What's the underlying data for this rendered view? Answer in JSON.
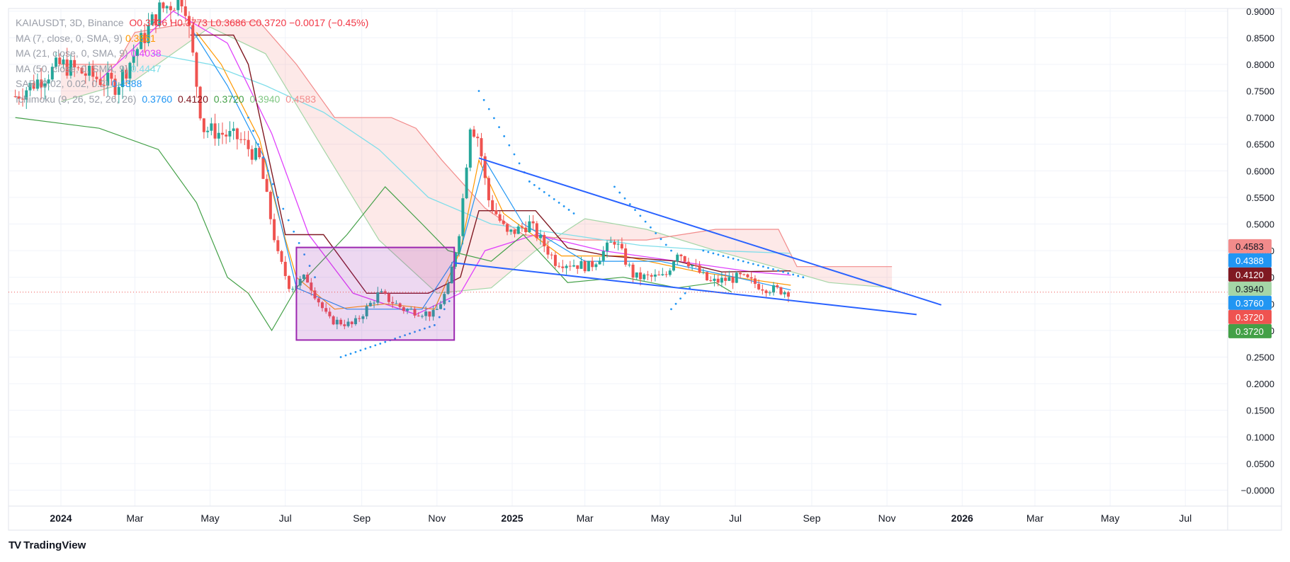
{
  "legend": {
    "symbol": "KAIAUSDT, 3D, Binance",
    "ohlc": "O0.3736  H0.3773  L0.3686  C0.3720  −0.0017 (−0.45%)",
    "ma1_label": "MA (7, close, 0, SMA, 9)",
    "ma1_value": "0.3851",
    "ma2_label": "MA (21, close, 0, SMA, 9)",
    "ma2_value": "0.4038",
    "ma3_label": "MA (50, close, 0, SMA, 9)",
    "ma3_value": "0.4447",
    "sar_label": "SAR (0.02, 0.02, 0.2)",
    "sar_value": "0.4388",
    "ichi_label": "Ichimoku (9, 26, 52, 26, 26)",
    "ichi_values": [
      "0.3760",
      "0.4120",
      "0.3720",
      "0.3940",
      "0.4583"
    ]
  },
  "brand": "TradingView",
  "colors": {
    "up": "#26a69a",
    "down": "#ef5350",
    "conversion": "#2196f3",
    "base": "#801922",
    "lagging": "#43a047",
    "leadA": "#a5d6a7",
    "leadB": "#f28b8b",
    "ma7": "#ff9800",
    "ma21": "#e040fb",
    "ma50": "#80deea",
    "sar": "#2196f3",
    "trend": "#2962ff",
    "box": "#9c27b0"
  },
  "chart_data": {
    "type": "candlestick",
    "y_axis": {
      "ylim": [
        -0.03,
        0.905
      ],
      "ticks": [
        "0.9000",
        "0.8500",
        "0.8000",
        "0.7500",
        "0.7000",
        "0.6500",
        "0.6000",
        "0.5500",
        "0.5000",
        "0.4500",
        "0.4000",
        "0.3500",
        "0.3000",
        "0.2500",
        "0.2000",
        "0.1500",
        "0.1000",
        "0.0500",
        "−0.0000"
      ]
    },
    "x_axis": {
      "ticks": [
        "2024",
        "Mar",
        "May",
        "Jul",
        "Sep",
        "Nov",
        "2025",
        "Mar",
        "May",
        "Jul",
        "Sep",
        "Nov",
        "2026",
        "Mar",
        "May",
        "Jul"
      ]
    },
    "price_labels": [
      {
        "text": "0.4583",
        "value": 0.4583,
        "color": "#f28b8b",
        "text_color": "#131722"
      },
      {
        "text": "0.4388",
        "value": 0.4388,
        "color": "#2196f3",
        "text_color": "#ffffff"
      },
      {
        "text": "0.4120",
        "value": 0.412,
        "color": "#801922",
        "text_color": "#ffffff"
      },
      {
        "text": "0.3940",
        "value": 0.394,
        "color": "#a5d6a7",
        "text_color": "#131722"
      },
      {
        "text": "0.3760",
        "value": 0.376,
        "color": "#2196f3",
        "text_color": "#ffffff"
      },
      {
        "text": "0.3720",
        "value": 0.372,
        "color": "#ef5350",
        "text_color": "#ffffff"
      },
      {
        "text": "0.3720",
        "value": 0.372,
        "color": "#43a047",
        "text_color": "#ffffff"
      }
    ],
    "last_close": 0.372,
    "price_path": [
      [
        "2023-11-25",
        0.74
      ],
      [
        "2024-01-01",
        0.8
      ],
      [
        "2024-02-15",
        0.76
      ],
      [
        "2024-03-20",
        0.9
      ],
      [
        "2024-04-10",
        0.93
      ],
      [
        "2024-04-25",
        0.68
      ],
      [
        "2024-05-25",
        0.66
      ],
      [
        "2024-06-10",
        0.62
      ],
      [
        "2024-06-25",
        0.44
      ],
      [
        "2024-07-05",
        0.38
      ],
      [
        "2024-07-18",
        0.4
      ],
      [
        "2024-08-05",
        0.32
      ],
      [
        "2024-08-25",
        0.31
      ],
      [
        "2024-09-15",
        0.37
      ],
      [
        "2024-10-05",
        0.34
      ],
      [
        "2024-10-30",
        0.33
      ],
      [
        "2024-11-10",
        0.38
      ],
      [
        "2024-11-20",
        0.5
      ],
      [
        "2024-11-28",
        0.69
      ],
      [
        "2024-12-05",
        0.66
      ],
      [
        "2024-12-12",
        0.55
      ],
      [
        "2024-12-28",
        0.48
      ],
      [
        "2025-01-15",
        0.5
      ],
      [
        "2025-02-05",
        0.43
      ],
      [
        "2025-03-05",
        0.42
      ],
      [
        "2025-03-25",
        0.47
      ],
      [
        "2025-04-10",
        0.4
      ],
      [
        "2025-05-05",
        0.4
      ],
      [
        "2025-05-15",
        0.45
      ],
      [
        "2025-06-10",
        0.39
      ],
      [
        "2025-07-05",
        0.4
      ],
      [
        "2025-07-25",
        0.38
      ],
      [
        "2025-08-15",
        0.372
      ]
    ],
    "ma7_path": [
      [
        "2024-04-20",
        0.86
      ],
      [
        "2024-05-10",
        0.8
      ],
      [
        "2024-06-10",
        0.66
      ],
      [
        "2024-06-25",
        0.52
      ],
      [
        "2024-07-10",
        0.4
      ],
      [
        "2024-08-10",
        0.34
      ],
      [
        "2024-09-20",
        0.35
      ],
      [
        "2024-10-30",
        0.34
      ],
      [
        "2024-11-20",
        0.45
      ],
      [
        "2024-12-05",
        0.62
      ],
      [
        "2024-12-25",
        0.52
      ],
      [
        "2025-02-10",
        0.44
      ],
      [
        "2025-04-01",
        0.44
      ],
      [
        "2025-06-01",
        0.41
      ],
      [
        "2025-08-15",
        0.385
      ]
    ],
    "ma21_path": [
      [
        "2024-02-01",
        0.77
      ],
      [
        "2024-04-01",
        0.9
      ],
      [
        "2024-05-15",
        0.84
      ],
      [
        "2024-06-20",
        0.67
      ],
      [
        "2024-07-20",
        0.48
      ],
      [
        "2024-08-25",
        0.37
      ],
      [
        "2024-10-15",
        0.33
      ],
      [
        "2024-11-20",
        0.37
      ],
      [
        "2024-12-10",
        0.45
      ],
      [
        "2025-01-20",
        0.48
      ],
      [
        "2025-03-15",
        0.45
      ],
      [
        "2025-05-15",
        0.43
      ],
      [
        "2025-07-15",
        0.41
      ],
      [
        "2025-08-15",
        0.404
      ]
    ],
    "ma50_path": [
      [
        "2024-03-15",
        0.82
      ],
      [
        "2024-05-01",
        0.8
      ],
      [
        "2024-06-15",
        0.76
      ],
      [
        "2024-08-01",
        0.71
      ],
      [
        "2024-09-15",
        0.64
      ],
      [
        "2024-10-25",
        0.55
      ],
      [
        "2024-12-15",
        0.5
      ],
      [
        "2025-02-15",
        0.48
      ],
      [
        "2025-04-15",
        0.46
      ],
      [
        "2025-06-15",
        0.45
      ],
      [
        "2025-08-15",
        0.445
      ]
    ],
    "conversion_path": [
      [
        "2024-04-15",
        0.87
      ],
      [
        "2024-05-15",
        0.76
      ],
      [
        "2024-06-15",
        0.62
      ],
      [
        "2024-07-10",
        0.38
      ],
      [
        "2024-08-20",
        0.34
      ],
      [
        "2024-10-20",
        0.34
      ],
      [
        "2024-11-20",
        0.45
      ],
      [
        "2024-12-10",
        0.62
      ],
      [
        "2025-01-10",
        0.5
      ],
      [
        "2025-03-01",
        0.43
      ],
      [
        "2025-05-01",
        0.43
      ],
      [
        "2025-07-01",
        0.4
      ],
      [
        "2025-08-15",
        0.376
      ]
    ],
    "base_path": [
      [
        "2024-04-15",
        0.855
      ],
      [
        "2024-05-20",
        0.855
      ],
      [
        "2024-06-01",
        0.8
      ],
      [
        "2024-07-01",
        0.48
      ],
      [
        "2024-08-01",
        0.48
      ],
      [
        "2024-09-05",
        0.37
      ],
      [
        "2024-10-25",
        0.37
      ],
      [
        "2024-11-20",
        0.4
      ],
      [
        "2024-12-05",
        0.525
      ],
      [
        "2025-01-20",
        0.525
      ],
      [
        "2025-02-15",
        0.455
      ],
      [
        "2025-03-20",
        0.44
      ],
      [
        "2025-05-15",
        0.43
      ],
      [
        "2025-06-20",
        0.41
      ],
      [
        "2025-08-15",
        0.412
      ]
    ],
    "lagging_path": [
      [
        "2023-11-25",
        0.7
      ],
      [
        "2024-02-01",
        0.68
      ],
      [
        "2024-03-20",
        0.64
      ],
      [
        "2024-04-20",
        0.54
      ],
      [
        "2024-05-15",
        0.4
      ],
      [
        "2024-06-01",
        0.37
      ],
      [
        "2024-06-20",
        0.3
      ],
      [
        "2024-07-10",
        0.38
      ],
      [
        "2024-08-20",
        0.48
      ],
      [
        "2024-09-20",
        0.57
      ],
      [
        "2024-10-20",
        0.5
      ],
      [
        "2024-11-10",
        0.45
      ],
      [
        "2024-12-15",
        0.43
      ],
      [
        "2025-01-10",
        0.48
      ],
      [
        "2025-02-15",
        0.39
      ],
      [
        "2025-04-01",
        0.4
      ],
      [
        "2025-05-15",
        0.38
      ],
      [
        "2025-06-15",
        0.39
      ],
      [
        "2025-06-28",
        0.372
      ]
    ],
    "lead_a_path": [
      [
        "2024-01-01",
        0.73
      ],
      [
        "2024-03-01",
        0.77
      ],
      [
        "2024-05-01",
        0.87
      ],
      [
        "2024-06-15",
        0.82
      ],
      [
        "2024-08-01",
        0.64
      ],
      [
        "2024-09-15",
        0.47
      ],
      [
        "2024-11-01",
        0.37
      ],
      [
        "2024-12-15",
        0.38
      ],
      [
        "2025-01-20",
        0.45
      ],
      [
        "2025-03-01",
        0.51
      ],
      [
        "2025-04-20",
        0.49
      ],
      [
        "2025-06-15",
        0.45
      ],
      [
        "2025-08-01",
        0.42
      ],
      [
        "2025-09-15",
        0.39
      ],
      [
        "2025-11-05",
        0.38
      ]
    ],
    "lead_b_path": [
      [
        "2024-01-01",
        0.8
      ],
      [
        "2024-02-15",
        0.8
      ],
      [
        "2024-03-01",
        0.86
      ],
      [
        "2024-04-20",
        0.88
      ],
      [
        "2024-06-10",
        0.88
      ],
      [
        "2024-07-10",
        0.8
      ],
      [
        "2024-08-10",
        0.7
      ],
      [
        "2024-09-25",
        0.7
      ],
      [
        "2024-10-15",
        0.68
      ],
      [
        "2024-11-05",
        0.62
      ],
      [
        "2024-12-10",
        0.53
      ],
      [
        "2025-01-10",
        0.48
      ],
      [
        "2025-02-25",
        0.47
      ],
      [
        "2025-04-20",
        0.47
      ],
      [
        "2025-06-15",
        0.49
      ],
      [
        "2025-08-05",
        0.49
      ],
      [
        "2025-08-20",
        0.42
      ],
      [
        "2025-11-05",
        0.42
      ]
    ],
    "sar_segments": [
      [
        [
          "2024-07-25",
          0.4
        ],
        [
          "2024-06-25",
          0.55
        ],
        [
          "2024-06-01",
          0.7
        ]
      ],
      [
        [
          "2024-08-15",
          0.25
        ],
        [
          "2024-10-30",
          0.31
        ],
        [
          "2024-11-15",
          0.37
        ]
      ],
      [
        [
          "2024-12-05",
          0.75
        ],
        [
          "2025-01-15",
          0.58
        ],
        [
          "2025-02-20",
          0.52
        ]
      ],
      [
        [
          "2025-03-25",
          0.57
        ],
        [
          "2025-05-10",
          0.45
        ]
      ],
      [
        [
          "2025-05-10",
          0.34
        ],
        [
          "2025-05-25",
          0.38
        ]
      ],
      [
        [
          "2025-06-05",
          0.45
        ],
        [
          "2025-08-25",
          0.4
        ]
      ]
    ],
    "trendlines": [
      {
        "from": [
          "2024-12-05",
          0.624
        ],
        "to": [
          "2025-12-15",
          0.348
        ]
      },
      {
        "from": [
          "2024-11-15",
          0.427
        ],
        "to": [
          "2025-11-25",
          0.33
        ]
      }
    ],
    "box": {
      "from": [
        "2024-07-10",
        0.456
      ],
      "to": [
        "2024-11-15",
        0.282
      ]
    }
  }
}
